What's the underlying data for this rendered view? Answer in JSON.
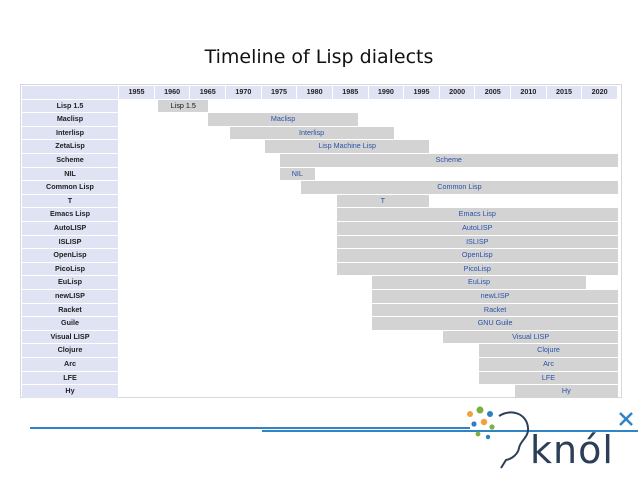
{
  "title": "Timeline of Lisp dialects",
  "timeline": {
    "start_year": 1950,
    "end_year": 2023,
    "years": [
      "1955",
      "1960",
      "1965",
      "1970",
      "1975",
      "1980",
      "1985",
      "1990",
      "1995",
      "2000",
      "2005",
      "2010",
      "2015",
      "2020"
    ],
    "rows": [
      {
        "name": "Lisp 1.5",
        "start": 1958,
        "end": 1965,
        "label": "Lisp 1.5",
        "dark": true
      },
      {
        "name": "Maclisp",
        "start": 1965,
        "end": 1986,
        "label": "Maclisp"
      },
      {
        "name": "Interlisp",
        "start": 1968,
        "end": 1991,
        "label": "Interlisp"
      },
      {
        "name": "ZetaLisp",
        "start": 1973,
        "end": 1996,
        "label": "Lisp Machine Lisp"
      },
      {
        "name": "Scheme",
        "start": 1975,
        "end": 2023,
        "label": "Scheme"
      },
      {
        "name": "NIL",
        "start": 1975,
        "end": 1980,
        "label": "NIL"
      },
      {
        "name": "Common Lisp",
        "start": 1978,
        "end": 2023,
        "label": "Common Lisp"
      },
      {
        "name": "T",
        "start": 1983,
        "end": 1996,
        "label": "T"
      },
      {
        "name": "Emacs Lisp",
        "start": 1983,
        "end": 2023,
        "label": "Emacs Lisp"
      },
      {
        "name": "AutoLISP",
        "start": 1983,
        "end": 2023,
        "label": "AutoLISP"
      },
      {
        "name": "ISLISP",
        "start": 1983,
        "end": 2023,
        "label": "ISLISP"
      },
      {
        "name": "OpenLisp",
        "start": 1983,
        "end": 2023,
        "label": "OpenLisp"
      },
      {
        "name": "PicoLisp",
        "start": 1983,
        "end": 2023,
        "label": "PicoLisp"
      },
      {
        "name": "EuLisp",
        "start": 1988,
        "end": 2018,
        "label": "EuLisp"
      },
      {
        "name": "newLISP",
        "start": 1988,
        "end": 2023,
        "label": "newLISP"
      },
      {
        "name": "Racket",
        "start": 1988,
        "end": 2023,
        "label": "Racket"
      },
      {
        "name": "Guile",
        "start": 1988,
        "end": 2023,
        "label": "GNU Guile"
      },
      {
        "name": "Visual LISP",
        "start": 1998,
        "end": 2023,
        "label": "Visual LISP"
      },
      {
        "name": "Clojure",
        "start": 2003,
        "end": 2023,
        "label": "Clojure"
      },
      {
        "name": "Arc",
        "start": 2003,
        "end": 2023,
        "label": "Arc"
      },
      {
        "name": "LFE",
        "start": 2003,
        "end": 2023,
        "label": "LFE"
      },
      {
        "name": "Hy",
        "start": 2008,
        "end": 2023,
        "label": "Hy"
      }
    ]
  },
  "logo": {
    "text": "knól"
  }
}
